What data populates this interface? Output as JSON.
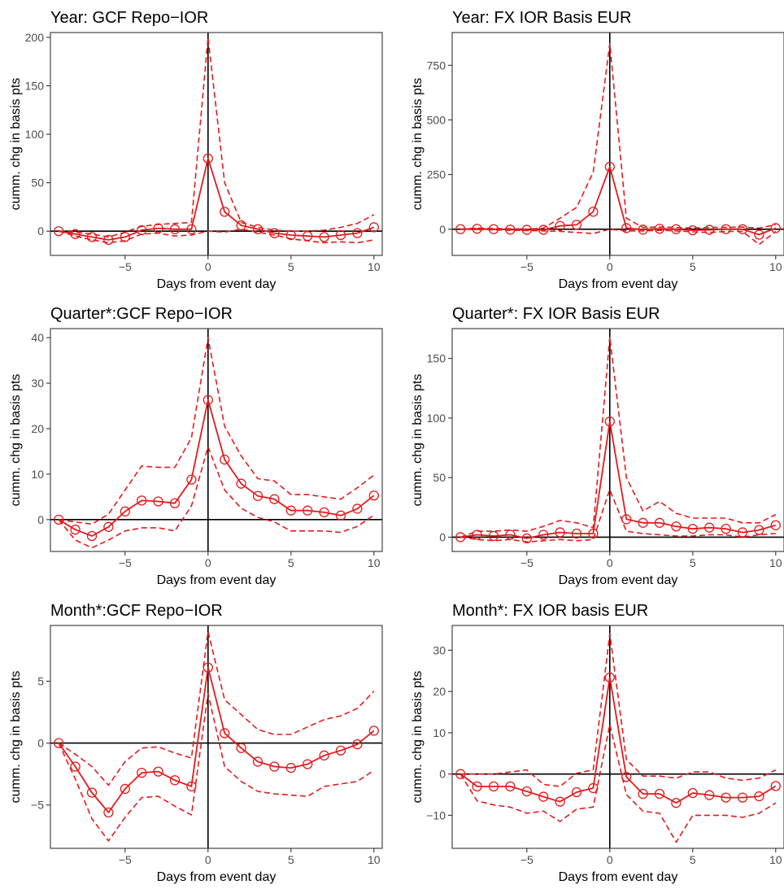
{
  "figure": {
    "xlabel": "Days from event day",
    "ylabel": "cumm. chg in basis pts",
    "colors": {
      "series": "#e41a1c",
      "axis": "#333333",
      "reference_lines": "#000000",
      "tick_text": "#4d4d4d"
    },
    "legend": "none",
    "grid": false
  },
  "chart_data": [
    {
      "type": "line",
      "title": "Year: GCF Repo−IOR",
      "xlabel": "Days from event day",
      "ylabel": "cumm. chg in basis pts",
      "xlim": [
        -9.5,
        10.5
      ],
      "ylim": [
        -25,
        205
      ],
      "xticks": [
        -5,
        0,
        5,
        10
      ],
      "xtick_labels": [
        "−5",
        "0",
        "5",
        "10"
      ],
      "yticks": [
        0,
        50,
        100,
        150,
        200
      ],
      "ytick_labels": [
        "0",
        "50",
        "100",
        "150",
        "200"
      ],
      "x": [
        -9,
        -8,
        -7,
        -6,
        -5,
        -4,
        -3,
        -2,
        -1,
        0,
        1,
        2,
        3,
        4,
        5,
        6,
        7,
        8,
        9,
        10
      ],
      "series": [
        {
          "role": "mean",
          "values": [
            0,
            -3,
            -6,
            -9,
            -6,
            1,
            3,
            2,
            2,
            75,
            20,
            6,
            2,
            -2,
            -4,
            -5,
            -6,
            -4,
            -2,
            4
          ]
        },
        {
          "role": "upper",
          "values": [
            0,
            -1,
            -3,
            -6,
            -1,
            5,
            7,
            8,
            9,
            200,
            50,
            9,
            4,
            1,
            0,
            0,
            1,
            4,
            8,
            17
          ]
        },
        {
          "role": "lower",
          "values": [
            0,
            -5,
            -9,
            -12,
            -10,
            -3,
            -2,
            -5,
            -4,
            0,
            -1,
            2,
            -1,
            -4,
            -8,
            -10,
            -12,
            -11,
            -12,
            -9
          ]
        }
      ]
    },
    {
      "type": "line",
      "title": "Year: FX IOR Basis EUR",
      "xlabel": "Days from event day",
      "ylabel": "cumm. chg in basis pts",
      "xlim": [
        -9.5,
        10.5
      ],
      "ylim": [
        -120,
        900
      ],
      "xticks": [
        -5,
        0,
        5,
        10
      ],
      "xtick_labels": [
        "−5",
        "0",
        "5",
        "10"
      ],
      "yticks": [
        0,
        250,
        500,
        750
      ],
      "ytick_labels": [
        "0",
        "250",
        "500",
        "750"
      ],
      "x": [
        -9,
        -8,
        -7,
        -6,
        -5,
        -4,
        -3,
        -2,
        -1,
        0,
        1,
        2,
        3,
        4,
        5,
        6,
        7,
        8,
        9,
        10
      ],
      "series": [
        {
          "role": "mean",
          "values": [
            0,
            2,
            0,
            -2,
            -3,
            -3,
            15,
            20,
            80,
            285,
            5,
            -2,
            2,
            0,
            -5,
            -3,
            0,
            0,
            -25,
            5
          ]
        },
        {
          "role": "upper",
          "values": [
            0,
            5,
            3,
            2,
            0,
            5,
            50,
            100,
            260,
            850,
            50,
            8,
            10,
            8,
            5,
            8,
            8,
            10,
            5,
            20
          ]
        },
        {
          "role": "lower",
          "values": [
            0,
            -2,
            -3,
            -5,
            -6,
            -8,
            -10,
            -15,
            -20,
            0,
            -8,
            -8,
            -5,
            -8,
            -12,
            -15,
            -10,
            -10,
            -70,
            -10
          ]
        }
      ]
    },
    {
      "type": "line",
      "title": "Quarter*:GCF Repo−IOR",
      "xlabel": "Days from event day",
      "ylabel": "cumm. chg in basis pts",
      "xlim": [
        -9.5,
        10.5
      ],
      "ylim": [
        -7,
        42
      ],
      "xticks": [
        -5,
        0,
        5,
        10
      ],
      "xtick_labels": [
        "−5",
        "0",
        "5",
        "10"
      ],
      "yticks": [
        0,
        10,
        20,
        30,
        40
      ],
      "ytick_labels": [
        "0",
        "10",
        "20",
        "30",
        "40"
      ],
      "x": [
        -9,
        -8,
        -7,
        -6,
        -5,
        -4,
        -3,
        -2,
        -1,
        0,
        1,
        2,
        3,
        4,
        5,
        6,
        7,
        8,
        9,
        10
      ],
      "series": [
        {
          "role": "mean",
          "values": [
            0,
            -2.2,
            -3.6,
            -1.6,
            1.8,
            4.2,
            4.0,
            3.6,
            8.8,
            26.3,
            13.2,
            7.9,
            5.2,
            4.5,
            2.0,
            2.0,
            1.6,
            0.9,
            2.4,
            5.3
          ]
        },
        {
          "role": "upper",
          "values": [
            0,
            -0.5,
            -1.0,
            1.2,
            6.5,
            11.8,
            11.5,
            11.5,
            18.0,
            40.0,
            20.5,
            14.0,
            9.0,
            8.5,
            5.5,
            5.5,
            5.0,
            4.5,
            7.0,
            9.8
          ]
        },
        {
          "role": "lower",
          "values": [
            0,
            -4.5,
            -6.2,
            -4.5,
            -2.5,
            -1.8,
            -1.8,
            -2.5,
            3.0,
            16.0,
            6.5,
            2.5,
            0.5,
            -0.5,
            -2.5,
            -2.5,
            -2.5,
            -2.8,
            -1.5,
            1.0
          ]
        }
      ]
    },
    {
      "type": "line",
      "title": "Quarter*: FX IOR Basis EUR",
      "xlabel": "Days from event day",
      "ylabel": "cumm. chg in basis pts",
      "xlim": [
        -9.5,
        10.5
      ],
      "ylim": [
        -12,
        175
      ],
      "xticks": [
        -5,
        0,
        5,
        10
      ],
      "xtick_labels": [
        "−5",
        "0",
        "5",
        "10"
      ],
      "yticks": [
        0,
        50,
        100,
        150
      ],
      "ytick_labels": [
        "0",
        "50",
        "100",
        "150"
      ],
      "x": [
        -9,
        -8,
        -7,
        -6,
        -5,
        -4,
        -3,
        -2,
        -1,
        0,
        1,
        2,
        3,
        4,
        5,
        6,
        7,
        8,
        9,
        10
      ],
      "series": [
        {
          "role": "mean",
          "values": [
            0,
            2,
            1,
            2,
            -1,
            2,
            4,
            3,
            3,
            97,
            15,
            12,
            12,
            9,
            7,
            8,
            7,
            4,
            6,
            10
          ]
        },
        {
          "role": "upper",
          "values": [
            0,
            5,
            5,
            6,
            5,
            9,
            14,
            12,
            8,
            168,
            50,
            22,
            30,
            20,
            16,
            16,
            16,
            12,
            12,
            19
          ]
        },
        {
          "role": "lower",
          "values": [
            0,
            -2,
            -3,
            -2,
            -4,
            -3,
            -2,
            -3,
            -2,
            40,
            5,
            3,
            2,
            1,
            1,
            2,
            2,
            0,
            2,
            3
          ]
        }
      ]
    },
    {
      "type": "line",
      "title": "Month*:GCF Repo−IOR",
      "xlabel": "Days from event day",
      "ylabel": "cumm. chg in basis pts",
      "xlim": [
        -9.5,
        10.5
      ],
      "ylim": [
        -8.5,
        9.5
      ],
      "xticks": [
        -5,
        0,
        5,
        10
      ],
      "xtick_labels": [
        "−5",
        "0",
        "5",
        "10"
      ],
      "yticks": [
        -5,
        0,
        5
      ],
      "ytick_labels": [
        "−5",
        "0",
        "5"
      ],
      "x": [
        -9,
        -8,
        -7,
        -6,
        -5,
        -4,
        -3,
        -2,
        -1,
        0,
        1,
        2,
        3,
        4,
        5,
        6,
        7,
        8,
        9,
        10
      ],
      "series": [
        {
          "role": "mean",
          "values": [
            0,
            -1.9,
            -4.0,
            -5.6,
            -3.7,
            -2.4,
            -2.3,
            -3.0,
            -3.5,
            6.1,
            0.8,
            -0.4,
            -1.5,
            -1.9,
            -2.0,
            -1.7,
            -1.0,
            -0.6,
            -0.1,
            1.0
          ]
        },
        {
          "role": "upper",
          "values": [
            0,
            -0.9,
            -1.9,
            -3.4,
            -1.5,
            -0.4,
            -0.3,
            -0.8,
            -1.2,
            9.0,
            3.5,
            2.3,
            1.1,
            0.7,
            0.7,
            1.3,
            1.9,
            2.2,
            2.8,
            4.2
          ]
        },
        {
          "role": "lower",
          "values": [
            0,
            -2.9,
            -6.1,
            -7.9,
            -6.0,
            -4.4,
            -4.3,
            -5.1,
            -5.8,
            4.0,
            -1.9,
            -3.1,
            -3.9,
            -4.1,
            -4.2,
            -4.3,
            -3.5,
            -3.3,
            -3.1,
            -2.2
          ]
        }
      ]
    },
    {
      "type": "line",
      "title": "Month*: FX IOR basis EUR",
      "xlabel": "Days from event day",
      "ylabel": "cumm. chg in basis pts",
      "xlim": [
        -9.5,
        10.5
      ],
      "ylim": [
        -18,
        36
      ],
      "xticks": [
        -5,
        0,
        5,
        10
      ],
      "xtick_labels": [
        "−5",
        "0",
        "5",
        "10"
      ],
      "yticks": [
        -10,
        0,
        10,
        20,
        30
      ],
      "ytick_labels": [
        "−10",
        "0",
        "10",
        "20",
        "30"
      ],
      "x": [
        -9,
        -8,
        -7,
        -6,
        -5,
        -4,
        -3,
        -2,
        -1,
        0,
        1,
        2,
        3,
        4,
        5,
        6,
        7,
        8,
        9,
        10
      ],
      "series": [
        {
          "role": "mean",
          "values": [
            0,
            -3.0,
            -3.0,
            -3.0,
            -4.2,
            -5.5,
            -6.7,
            -4.4,
            -3.4,
            23.4,
            -0.7,
            -4.8,
            -4.8,
            -7.0,
            -4.6,
            -5.1,
            -5.7,
            -5.7,
            -5.4,
            -2.9
          ]
        },
        {
          "role": "upper",
          "values": [
            0,
            0,
            0,
            0.5,
            1.0,
            -2.5,
            -3.0,
            0.2,
            1.0,
            34.0,
            3.5,
            -0.5,
            -0.5,
            -1.0,
            0.5,
            0.5,
            -1.0,
            -1.5,
            -1.0,
            1.0
          ]
        },
        {
          "role": "lower",
          "values": [
            0,
            -6.5,
            -7.5,
            -8.0,
            -9.5,
            -9.0,
            -11.5,
            -8.5,
            -8.0,
            12.0,
            -5.0,
            -9.0,
            -9.5,
            -16.5,
            -10.0,
            -10.0,
            -10.0,
            -10.5,
            -9.5,
            -7.0
          ]
        }
      ]
    }
  ]
}
